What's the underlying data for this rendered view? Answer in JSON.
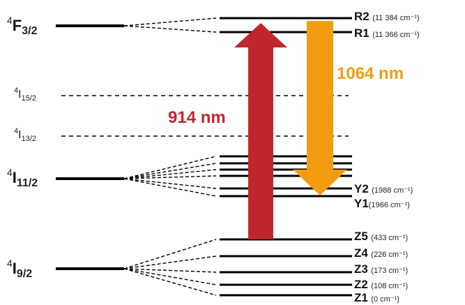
{
  "terms": [
    {
      "id": "4F32",
      "sup": "4",
      "letter": "F",
      "sub": "3/2"
    },
    {
      "id": "4I152",
      "sup": "4",
      "letter": "I",
      "sub": "15/2"
    },
    {
      "id": "4I132",
      "sup": "4",
      "letter": "I",
      "sub": "13/2"
    },
    {
      "id": "4I112",
      "sup": "4",
      "letter": "I",
      "sub": "11/2"
    },
    {
      "id": "4I92",
      "sup": "4",
      "letter": "I",
      "sub": "9/2"
    }
  ],
  "sublevels": [
    {
      "name": "R2",
      "energy": "(11 384 cm⁻¹)"
    },
    {
      "name": "R1",
      "energy": "(11 366 cm⁻¹)"
    },
    {
      "name": "Y2",
      "energy": "(1988 cm⁻¹)"
    },
    {
      "name": "Y1",
      "energy": "(1966 cm⁻¹)"
    },
    {
      "name": "Z5",
      "energy": "(433 cm⁻¹)"
    },
    {
      "name": "Z4",
      "energy": "(226 cm⁻¹)"
    },
    {
      "name": "Z3",
      "energy": "(173 cm⁻¹)"
    },
    {
      "name": "Z2",
      "energy": "(108 cm⁻¹)"
    },
    {
      "name": "Z1",
      "energy": "(0 cm⁻¹)"
    }
  ],
  "transitions": [
    {
      "label": "914 nm",
      "color": "#c0272d",
      "direction": "up"
    },
    {
      "label": "1064 nm",
      "color": "#f39c12",
      "direction": "down"
    }
  ],
  "colors": {
    "line": "#000000",
    "pump": "#c0272d",
    "laser": "#f39c12"
  }
}
